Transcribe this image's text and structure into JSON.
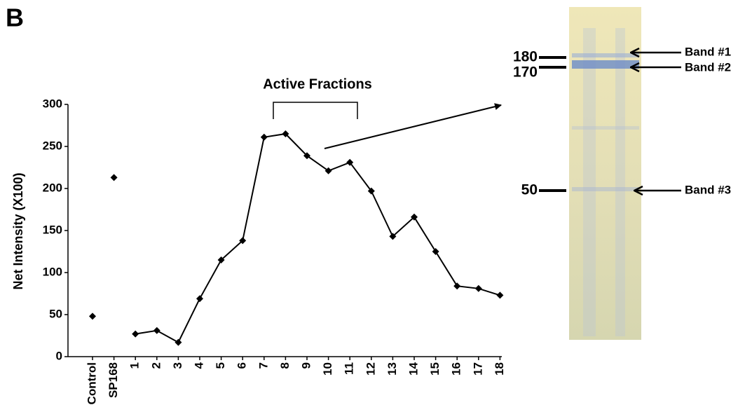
{
  "panel_label": "B",
  "chart_data": {
    "type": "line",
    "ylabel": "Net Intensity (X100)",
    "annotation": "Active Fractions",
    "categories": [
      "Control",
      "SP168",
      "1",
      "2",
      "3",
      "4",
      "5",
      "6",
      "7",
      "8",
      "9",
      "10",
      "11",
      "12",
      "13",
      "14",
      "15",
      "16",
      "17",
      "18"
    ],
    "series": [
      {
        "color": "#000000",
        "line": false,
        "values": [
          48,
          213,
          null,
          null,
          null,
          null,
          null,
          null,
          null,
          null,
          null,
          null,
          null,
          null,
          null,
          null,
          null,
          null,
          null,
          null
        ]
      },
      {
        "color": "#000000",
        "line": true,
        "values": [
          null,
          null,
          27,
          31,
          17,
          69,
          115,
          138,
          261,
          265,
          239,
          221,
          231,
          197,
          143,
          166,
          125,
          84,
          81,
          73
        ]
      }
    ],
    "ylim": [
      0,
      300
    ],
    "yticks": [
      0,
      50,
      100,
      150,
      200,
      250,
      300
    ],
    "grid": false
  },
  "gel": {
    "markers": [
      "180",
      "170",
      "50"
    ],
    "bands": [
      "Band #1",
      "Band #2",
      "Band #3"
    ]
  }
}
